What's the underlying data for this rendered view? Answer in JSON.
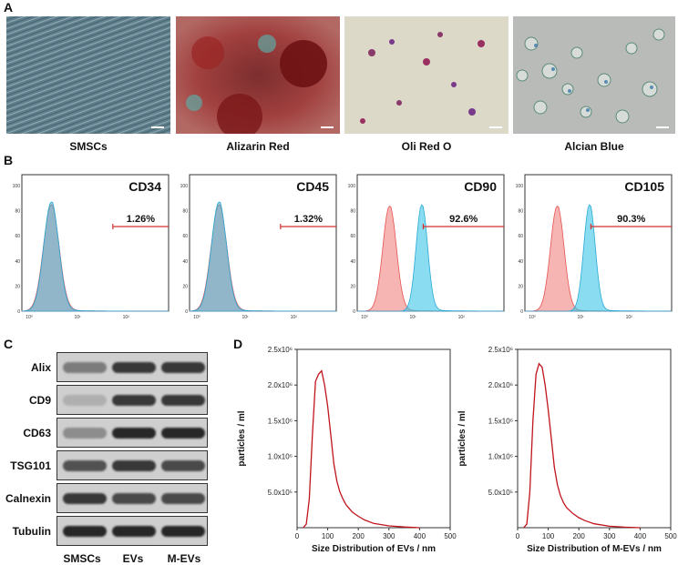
{
  "panel_labels": {
    "a": "A",
    "b": "B",
    "c": "C",
    "d": "D"
  },
  "panel_a": {
    "images": [
      {
        "caption": "SMSCs"
      },
      {
        "caption": "Alizarin Red"
      },
      {
        "caption": "Oli Red O"
      },
      {
        "caption": "Alcian Blue"
      }
    ]
  },
  "chart_data": [
    {
      "type": "area",
      "title": "CD34",
      "percent": "1.26%",
      "y_ticks": [
        "0",
        "20",
        "40",
        "60",
        "80",
        "100"
      ],
      "x_ticks": [
        "10⁰",
        "10¹",
        "10²"
      ],
      "series_colors": [
        "#f07070",
        "#3cc4e6"
      ],
      "overlap": true
    },
    {
      "type": "area",
      "title": "CD45",
      "percent": "1.32%",
      "y_ticks": [
        "0",
        "20",
        "40",
        "60",
        "80",
        "100"
      ],
      "x_ticks": [
        "10⁰",
        "10¹",
        "10²"
      ],
      "series_colors": [
        "#f07070",
        "#3cc4e6"
      ],
      "overlap": true
    },
    {
      "type": "area",
      "title": "CD90",
      "percent": "92.6%",
      "y_ticks": [
        "0",
        "20",
        "40",
        "60",
        "80",
        "100"
      ],
      "x_ticks": [
        "10⁰",
        "10¹",
        "10²"
      ],
      "series_colors": [
        "#f07070",
        "#3cc4e6"
      ],
      "overlap": false
    },
    {
      "type": "area",
      "title": "CD105",
      "percent": "90.3%",
      "y_ticks": [
        "0",
        "20",
        "40",
        "60",
        "80",
        "100"
      ],
      "x_ticks": [
        "10⁰",
        "10¹",
        "10²"
      ],
      "series_colors": [
        "#f07070",
        "#3cc4e6"
      ],
      "overlap": false
    },
    {
      "type": "line",
      "xlabel": "Size Distribution of EVs / nm",
      "ylabel": "particles / ml",
      "x_ticks": [
        "0",
        "100",
        "200",
        "300",
        "400",
        "500"
      ],
      "y_ticks": [
        "5.0x10⁵",
        "1.0x10⁶",
        "1.5x10⁶",
        "2.0x10⁶",
        "2.5x10⁶"
      ],
      "xlim": [
        0,
        500
      ],
      "ylim": [
        0,
        2500000
      ],
      "color": "#c0141b",
      "x": [
        20,
        30,
        40,
        50,
        60,
        70,
        80,
        90,
        100,
        110,
        120,
        130,
        140,
        150,
        160,
        180,
        200,
        220,
        250,
        300,
        350,
        400
      ],
      "y": [
        0,
        50000,
        400000,
        1300000,
        2050000,
        2150000,
        2200000,
        2000000,
        1700000,
        1300000,
        900000,
        650000,
        500000,
        400000,
        320000,
        220000,
        160000,
        110000,
        60000,
        25000,
        10000,
        0
      ]
    },
    {
      "type": "line",
      "xlabel": "Size Distribution of M-EVs / nm",
      "ylabel": "particles / ml",
      "x_ticks": [
        "0",
        "100",
        "200",
        "300",
        "400",
        "500"
      ],
      "y_ticks": [
        "5.0x10⁵",
        "1.0x10⁶",
        "1.5x10⁶",
        "2.0x10⁶",
        "2.5x10⁶"
      ],
      "xlim": [
        0,
        500
      ],
      "ylim": [
        0,
        2500000
      ],
      "color": "#c0141b",
      "x": [
        20,
        30,
        40,
        50,
        60,
        70,
        80,
        90,
        100,
        110,
        120,
        130,
        140,
        150,
        160,
        180,
        200,
        220,
        250,
        300,
        350,
        400
      ],
      "y": [
        0,
        50000,
        500000,
        1500000,
        2150000,
        2300000,
        2250000,
        2000000,
        1650000,
        1250000,
        850000,
        600000,
        450000,
        350000,
        280000,
        200000,
        140000,
        100000,
        55000,
        20000,
        8000,
        0
      ]
    }
  ],
  "panel_c": {
    "rows": [
      "Alix",
      "CD9",
      "CD63",
      "TSG101",
      "Calnexin",
      "Tubulin"
    ],
    "columns": [
      "SMSCs",
      "EVs",
      "M-EVs"
    ]
  }
}
